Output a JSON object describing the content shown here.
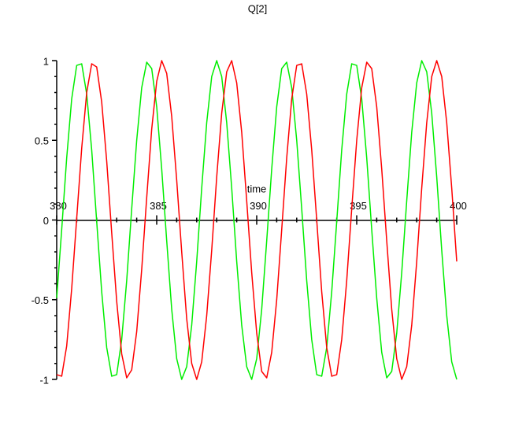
{
  "chart_data": {
    "type": "line",
    "title": "Q[2]",
    "x_label": "time",
    "x": [
      380,
      380.25,
      380.5,
      380.75,
      381,
      381.25,
      381.5,
      381.75,
      382,
      382.25,
      382.5,
      382.75,
      383,
      383.25,
      383.5,
      383.75,
      384,
      384.25,
      384.5,
      384.75,
      385,
      385.25,
      385.5,
      385.75,
      386,
      386.25,
      386.5,
      386.75,
      387,
      387.25,
      387.5,
      387.75,
      388,
      388.25,
      388.5,
      388.75,
      389,
      389.25,
      389.5,
      389.75,
      390,
      390.25,
      390.5,
      390.75,
      391,
      391.25,
      391.5,
      391.75,
      392,
      392.25,
      392.5,
      392.75,
      393,
      393.25,
      393.5,
      393.75,
      394,
      394.25,
      394.5,
      394.75,
      395,
      395.25,
      395.5,
      395.75,
      396,
      396.25,
      396.5,
      396.75,
      397,
      397.25,
      397.5,
      397.75,
      398,
      398.25,
      398.5,
      398.75,
      399,
      399.25,
      399.5,
      399.75,
      400
    ],
    "series": [
      {
        "color": "#00ee00",
        "values": [
          -0.49,
          -0.06,
          0.39,
          0.76,
          0.97,
          0.98,
          0.79,
          0.44,
          -0.01,
          -0.45,
          -0.8,
          -0.98,
          -0.97,
          -0.75,
          -0.38,
          0.07,
          0.5,
          0.83,
          0.99,
          0.95,
          0.71,
          0.32,
          -0.13,
          -0.56,
          -0.87,
          -1,
          -0.92,
          -0.66,
          -0.26,
          0.2,
          0.61,
          0.9,
          1,
          0.9,
          0.61,
          0.2,
          -0.26,
          -0.66,
          -0.92,
          -1,
          -0.87,
          -0.56,
          -0.13,
          0.32,
          0.71,
          0.95,
          0.99,
          0.83,
          0.5,
          0.07,
          -0.38,
          -0.75,
          -0.97,
          -0.98,
          -0.8,
          -0.45,
          -0.01,
          0.44,
          0.79,
          0.98,
          0.97,
          0.76,
          0.39,
          -0.06,
          -0.49,
          -0.83,
          -0.99,
          -0.95,
          -0.71,
          -0.33,
          0.12,
          0.55,
          0.86,
          1,
          0.93,
          0.67,
          0.27,
          -0.19,
          -0.6,
          -0.89,
          -1
        ]
      },
      {
        "color": "#ff0000",
        "values": [
          -0.97,
          -0.98,
          -0.79,
          -0.43,
          0.01,
          0.45,
          0.8,
          0.98,
          0.96,
          0.74,
          0.37,
          -0.08,
          -0.51,
          -0.84,
          -0.99,
          -0.94,
          -0.7,
          -0.31,
          0.14,
          0.57,
          0.87,
          1,
          0.92,
          0.65,
          0.25,
          -0.2,
          -0.62,
          -0.9,
          -1,
          -0.89,
          -0.6,
          -0.19,
          0.27,
          0.67,
          0.93,
          1,
          0.86,
          0.55,
          0.12,
          -0.33,
          -0.71,
          -0.95,
          -0.99,
          -0.83,
          -0.5,
          -0.06,
          0.39,
          0.76,
          0.97,
          0.98,
          0.79,
          0.44,
          0,
          -0.45,
          -0.8,
          -0.98,
          -0.97,
          -0.75,
          -0.38,
          0.07,
          0.5,
          0.83,
          0.99,
          0.95,
          0.71,
          0.32,
          -0.13,
          -0.56,
          -0.87,
          -1,
          -0.92,
          -0.66,
          -0.26,
          0.2,
          0.61,
          0.9,
          1,
          0.9,
          0.61,
          0.2,
          -0.26
        ]
      }
    ],
    "xlim": [
      380,
      400
    ],
    "ylim": [
      -1,
      1
    ],
    "xticks": [
      380,
      385,
      390,
      395,
      400
    ],
    "yticks": [
      -1,
      -0.5,
      0,
      0.5,
      1
    ],
    "xminorticks": [
      381,
      382,
      383,
      384,
      386,
      387,
      388,
      389,
      391,
      392,
      393,
      394,
      396,
      397,
      398,
      399
    ],
    "yminorticks": [
      -0.9,
      -0.8,
      -0.7,
      -0.6,
      -0.4,
      -0.3,
      -0.2,
      -0.1,
      0.1,
      0.2,
      0.3,
      0.4,
      0.6,
      0.7,
      0.8,
      0.9
    ]
  }
}
